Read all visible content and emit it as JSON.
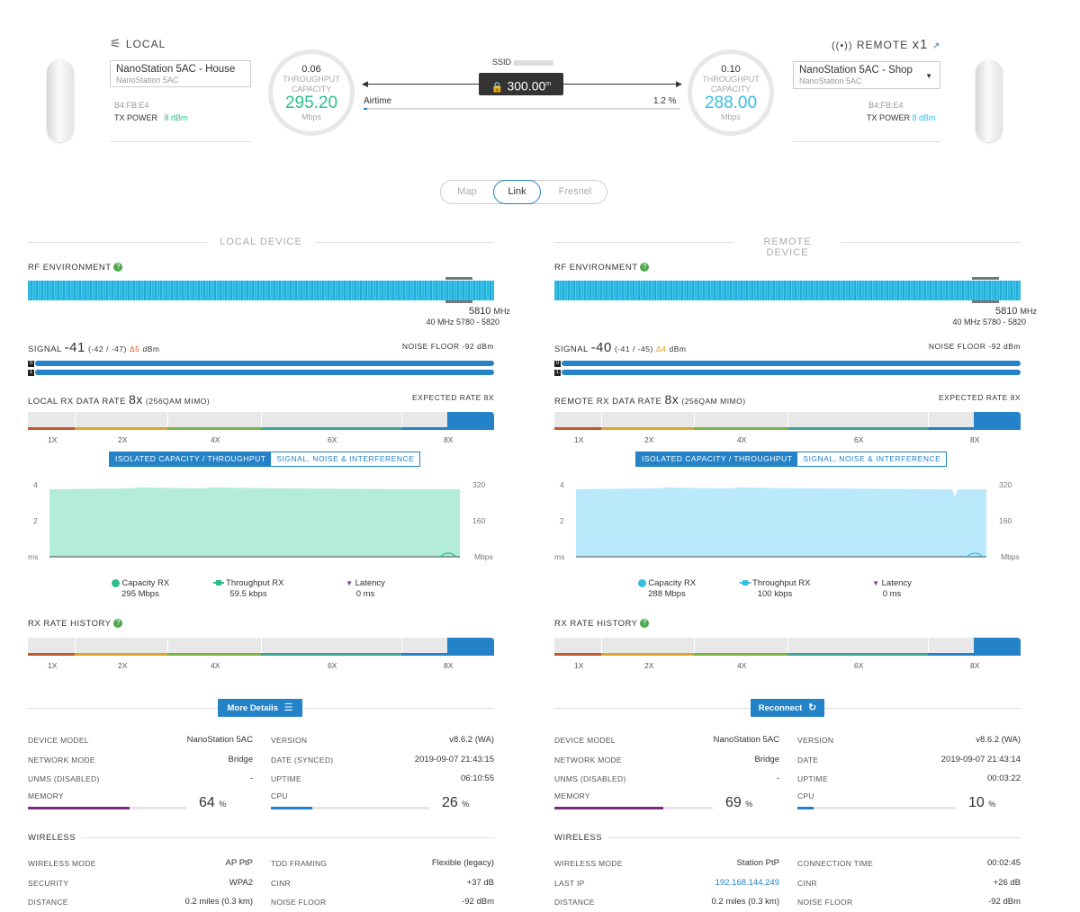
{
  "header": {
    "local": {
      "label": "LOCAL",
      "name": "NanoStation 5AC - House",
      "model": "NanoStation 5AC",
      "mac": "B4:FB:E4",
      "tx_power_label": "TX POWER",
      "tx_power_value": "8 dBm",
      "circle": {
        "top": "0.06",
        "line1": "THROUGHPUT",
        "line2": "CAPACITY",
        "value": "295.20",
        "unit": "Mbps",
        "color": "#2bbf8e"
      }
    },
    "remote": {
      "label": "REMOTE",
      "count": "x1",
      "name": "NanoStation 5AC - Shop",
      "model": "NanoStation 5AC",
      "mac": "B4:FB:E4",
      "tx_power_label": "TX POWER",
      "tx_power_value": "8 dBm",
      "circle": {
        "top": "0.10",
        "line1": "THROUGHPUT",
        "line2": "CAPACITY",
        "value": "288.00",
        "unit": "Mbps",
        "color": "#35bde6"
      }
    },
    "ssid_label": "SSID",
    "distance": "300.00",
    "distance_unit": "m",
    "airtime_label": "Airtime",
    "airtime_value": "1.2 %"
  },
  "view_tabs": [
    "Map",
    "Link",
    "Fresnel"
  ],
  "panels": [
    {
      "title": "LOCAL DEVICE",
      "rf_label": "RF ENVIRONMENT",
      "freq": "5810",
      "freq_unit": "MHz",
      "freq_range": "40 MHz 5780 - 5820",
      "signal_label": "SIGNAL",
      "signal_value": "-41",
      "signal_detail": "(-42 / -47)",
      "signal_delta": "Δ5",
      "signal_unit": "dBm",
      "noise_floor": "NOISE FLOOR -92 dBm",
      "rx_rate_label": "LOCAL RX DATA RATE",
      "rx_rate_value": "8x",
      "rx_rate_detail": "(256QAM MIMO)",
      "expected_rate": "EXPECTED RATE 8X",
      "rate_ticks": [
        "1X",
        "2X",
        "4X",
        "6X",
        "8X"
      ],
      "chart_tabs": [
        "ISOLATED CAPACITY / THROUGHPUT",
        "SIGNAL, NOISE & INTERFERENCE"
      ],
      "axis_left": [
        "4",
        "2",
        "ms"
      ],
      "axis_right": [
        "320",
        "160",
        "Mbps"
      ],
      "chart_color": "#b3ecd8",
      "legend": [
        {
          "name": "Capacity RX",
          "value": "295 Mbps"
        },
        {
          "name": "Throughput RX",
          "value": "59.5 kbps"
        },
        {
          "name": "Latency",
          "value": "0 ms"
        }
      ],
      "history_label": "RX RATE HISTORY",
      "action_button": "More Details",
      "info": [
        {
          "k": "DEVICE MODEL",
          "v": "NanoStation 5AC"
        },
        {
          "k": "NETWORK MODE",
          "v": "Bridge"
        },
        {
          "k": "UNMS (DISABLED)",
          "v": "-"
        },
        {
          "k": "VERSION",
          "v": "v8.6.2 (WA)"
        },
        {
          "k": "DATE (SYNCED)",
          "v": "2019-09-07 21:43:15"
        },
        {
          "k": "UPTIME",
          "v": "06:10:55"
        }
      ],
      "memory_label": "MEMORY",
      "memory_pct": "64",
      "cpu_label": "CPU",
      "cpu_pct": "26",
      "wireless_label": "WIRELESS",
      "wireless": [
        {
          "k": "WIRELESS MODE",
          "v": "AP PtP"
        },
        {
          "k": "SECURITY",
          "v": "WPA2"
        },
        {
          "k": "DISTANCE",
          "v": "0.2 miles (0.3 km)"
        },
        {
          "k": "TDD FRAMING",
          "v": "Flexible (legacy)"
        },
        {
          "k": "CINR",
          "v": "+37 dB"
        },
        {
          "k": "NOISE FLOOR",
          "v": "-92 dBm"
        }
      ]
    },
    {
      "title": "REMOTE DEVICE",
      "rf_label": "RF ENVIRONMENT",
      "freq": "5810",
      "freq_unit": "MHz",
      "freq_range": "40 MHz 5780 - 5820",
      "signal_label": "SIGNAL",
      "signal_value": "-40",
      "signal_detail": "(-41 / -45)",
      "signal_delta": "Δ4",
      "signal_unit": "dBm",
      "noise_floor": "NOISE FLOOR -92 dBm",
      "rx_rate_label": "REMOTE RX DATA RATE",
      "rx_rate_value": "8x",
      "rx_rate_detail": "(256QAM MIMO)",
      "expected_rate": "EXPECTED RATE 8X",
      "rate_ticks": [
        "1X",
        "2X",
        "4X",
        "6X",
        "8X"
      ],
      "chart_tabs": [
        "ISOLATED CAPACITY / THROUGHPUT",
        "SIGNAL, NOISE & INTERFERENCE"
      ],
      "axis_left": [
        "4",
        "2",
        "ms"
      ],
      "axis_right": [
        "320",
        "160",
        "Mbps"
      ],
      "chart_color": "#b9e9fa",
      "legend": [
        {
          "name": "Capacity RX",
          "value": "288 Mbps"
        },
        {
          "name": "Throughput RX",
          "value": "100 kbps"
        },
        {
          "name": "Latency",
          "value": "0 ms"
        }
      ],
      "history_label": "RX RATE HISTORY",
      "action_button": "Reconnect",
      "info": [
        {
          "k": "DEVICE MODEL",
          "v": "NanoStation 5AC"
        },
        {
          "k": "NETWORK MODE",
          "v": "Bridge"
        },
        {
          "k": "UNMS (DISABLED)",
          "v": "-"
        },
        {
          "k": "VERSION",
          "v": "v8.6.2 (WA)"
        },
        {
          "k": "DATE",
          "v": "2019-09-07 21:43:14"
        },
        {
          "k": "UPTIME",
          "v": "00:03:22"
        }
      ],
      "memory_label": "MEMORY",
      "memory_pct": "69",
      "cpu_label": "CPU",
      "cpu_pct": "10",
      "wireless_label": "WIRELESS",
      "wireless": [
        {
          "k": "WIRELESS MODE",
          "v": "Station PtP"
        },
        {
          "k": "LAST IP",
          "v": "192.168.144.249"
        },
        {
          "k": "DISTANCE",
          "v": "0.2 miles (0.3 km)"
        },
        {
          "k": "CONNECTION TIME",
          "v": "00:02:45"
        },
        {
          "k": "CINR",
          "v": "+26 dB"
        },
        {
          "k": "NOISE FLOOR",
          "v": "-92 dBm"
        }
      ]
    }
  ],
  "colors": {
    "accent": "#2382c8",
    "memory": "#7a2a82",
    "cpu": "#2382c8",
    "green": "#2bbf8e",
    "cyan": "#35bde6"
  }
}
